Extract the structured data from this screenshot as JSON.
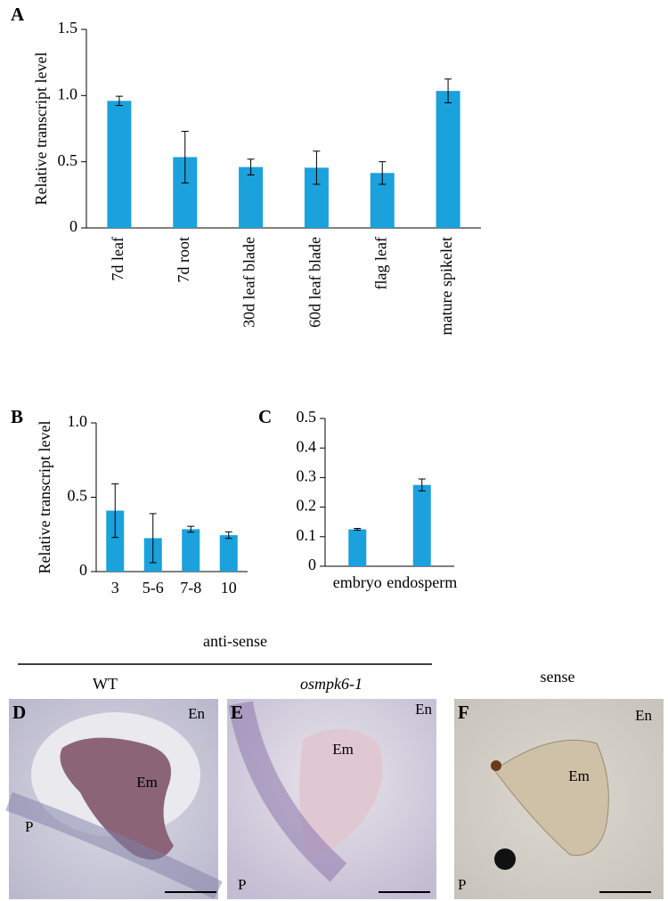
{
  "chart_data": [
    {
      "type": "bar",
      "panel_label": "A",
      "ylabel": "Relative transcript level",
      "categories": [
        "7d leaf",
        "7d root",
        "30d leaf blade",
        "60d leaf blade",
        "flag leaf",
        "mature spikelet"
      ],
      "values": [
        0.96,
        0.535,
        0.46,
        0.455,
        0.415,
        1.035
      ],
      "errors": [
        0.035,
        0.195,
        0.06,
        0.125,
        0.085,
        0.09
      ],
      "color": "#1ba1dc",
      "ylim": [
        0,
        1.5
      ],
      "yticks": [
        0,
        0.5,
        {
          "value": 1,
          "label": "1.0"
        },
        1.5
      ]
    },
    {
      "type": "bar",
      "panel_label": "B",
      "ylabel": "Relative transcript level",
      "categories": [
        "3",
        "5-6",
        "7-8",
        "10"
      ],
      "values": [
        0.41,
        0.225,
        0.285,
        0.245
      ],
      "errors": [
        0.18,
        0.165,
        0.02,
        0.022
      ],
      "color": "#1ba1dc",
      "ylim": [
        0,
        1
      ],
      "yticks": [
        0,
        0.5,
        {
          "value": 1,
          "label": "1.0"
        }
      ]
    },
    {
      "type": "bar",
      "panel_label": "C",
      "categories": [
        "embryo",
        "endosperm"
      ],
      "values": [
        0.125,
        0.275
      ],
      "errors": [
        0.003,
        0.02
      ],
      "color": "#1ba1dc",
      "ylim": [
        0,
        0.5
      ],
      "yticks": [
        0,
        0.1,
        0.2,
        0.3,
        0.4,
        0.5
      ]
    }
  ],
  "panels": {
    "group_label": "anti-sense",
    "wt": "WT",
    "mutant": "osmpk6-1",
    "sense": "sense",
    "images": [
      {
        "letter": "D",
        "en": "En",
        "em": "Em",
        "p": "P"
      },
      {
        "letter": "E",
        "en": "En",
        "em": "Em",
        "p": "P"
      },
      {
        "letter": "F",
        "en": "En",
        "em": "Em",
        "p": "P"
      }
    ]
  }
}
